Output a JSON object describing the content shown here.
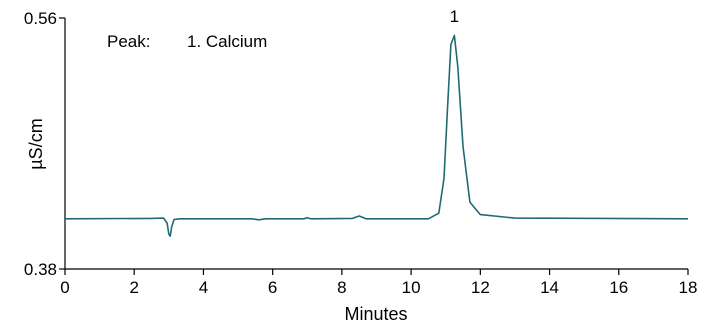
{
  "chart_data": {
    "type": "line",
    "xlabel": "Minutes",
    "ylabel": "µS/cm",
    "xlim": [
      0,
      18
    ],
    "ylim": [
      0.38,
      0.56
    ],
    "x_ticks": [
      "0",
      "2",
      "4",
      "6",
      "8",
      "10",
      "12",
      "14",
      "16",
      "18"
    ],
    "y_ticks": [
      "0.38",
      "0.56"
    ],
    "line_color": "#1f6b73",
    "legend": {
      "prefix": "Peak:",
      "entry": "1. Calcium"
    },
    "peak_label": {
      "text": "1",
      "x": 11.25,
      "y": 0.55
    },
    "series": [
      {
        "x": [
          0,
          2.5,
          2.85,
          2.95,
          3.0,
          3.04,
          3.08,
          3.15,
          3.3,
          5.4,
          5.6,
          5.8,
          6.9,
          7.0,
          7.1,
          8.3,
          8.5,
          8.7,
          10.5,
          10.8,
          10.95,
          11.05,
          11.15,
          11.25,
          11.35,
          11.5,
          11.7,
          12.0,
          13.0,
          18.0
        ],
        "y": [
          0.416,
          0.4163,
          0.4165,
          0.413,
          0.405,
          0.4035,
          0.41,
          0.4155,
          0.416,
          0.416,
          0.4153,
          0.416,
          0.416,
          0.4168,
          0.416,
          0.4163,
          0.418,
          0.416,
          0.416,
          0.42,
          0.445,
          0.495,
          0.541,
          0.5475,
          0.525,
          0.468,
          0.428,
          0.419,
          0.4165,
          0.416
        ]
      }
    ]
  }
}
